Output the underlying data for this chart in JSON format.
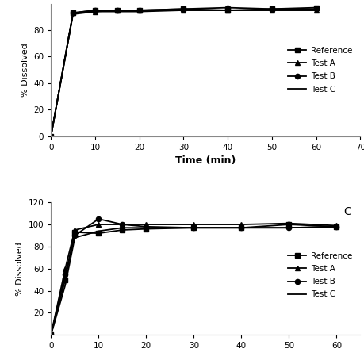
{
  "top_panel": {
    "reference": {
      "x": [
        0,
        5,
        10,
        15,
        20,
        30,
        40,
        50,
        60
      ],
      "y": [
        0,
        93,
        95,
        95,
        95,
        96,
        95,
        96,
        97
      ]
    },
    "test_a": {
      "x": [
        0,
        5,
        10,
        15,
        20,
        30,
        40,
        50,
        60
      ],
      "y": [
        0,
        93,
        94,
        95,
        95,
        95,
        95,
        95,
        95
      ]
    },
    "test_b": {
      "x": [
        0,
        5,
        10,
        15,
        20,
        30,
        40,
        50,
        60
      ],
      "y": [
        0,
        93,
        95,
        95,
        95,
        96,
        97,
        96,
        96
      ]
    },
    "test_c": {
      "x": [
        0,
        5,
        10,
        15,
        20,
        30,
        40,
        50,
        60
      ],
      "y": [
        0,
        92,
        94,
        94,
        94,
        95,
        95,
        95,
        95
      ]
    },
    "ylim": [
      0,
      100
    ],
    "xlim": [
      0,
      70
    ],
    "yticks": [
      0,
      20,
      40,
      60,
      80
    ],
    "xticks": [
      0,
      10,
      20,
      30,
      40,
      50,
      60,
      70
    ],
    "ylabel": "% Dissolved",
    "xlabel": "Time (min)"
  },
  "bottom_panel": {
    "reference": {
      "x": [
        0,
        3,
        5,
        10,
        15,
        20,
        30,
        40,
        50,
        60
      ],
      "y": [
        0,
        50,
        93,
        92,
        95,
        96,
        97,
        97,
        100,
        98
      ]
    },
    "test_a": {
      "x": [
        0,
        3,
        5,
        10,
        15,
        20,
        30,
        40,
        50,
        60
      ],
      "y": [
        0,
        60,
        95,
        100,
        100,
        100,
        100,
        100,
        101,
        99
      ]
    },
    "test_b": {
      "x": [
        0,
        3,
        5,
        10,
        15,
        20,
        30,
        40,
        50,
        60
      ],
      "y": [
        0,
        55,
        90,
        105,
        100,
        98,
        97,
        97,
        97,
        98
      ]
    },
    "test_c": {
      "x": [
        0,
        3,
        5,
        10,
        15,
        20,
        30,
        40,
        50,
        60
      ],
      "y": [
        0,
        45,
        88,
        94,
        97,
        97,
        97,
        97,
        97,
        98
      ]
    },
    "ylim": [
      0,
      120
    ],
    "xlim": [
      0,
      65
    ],
    "yticks": [
      20,
      40,
      60,
      80,
      100,
      120
    ],
    "xticks": [
      0,
      10,
      20,
      30,
      40,
      50,
      60
    ],
    "ylabel": "% Dissolved",
    "panel_label": "C"
  },
  "line_color": "#000000",
  "bg_color": "#ffffff",
  "fig_color": "#ffffff"
}
